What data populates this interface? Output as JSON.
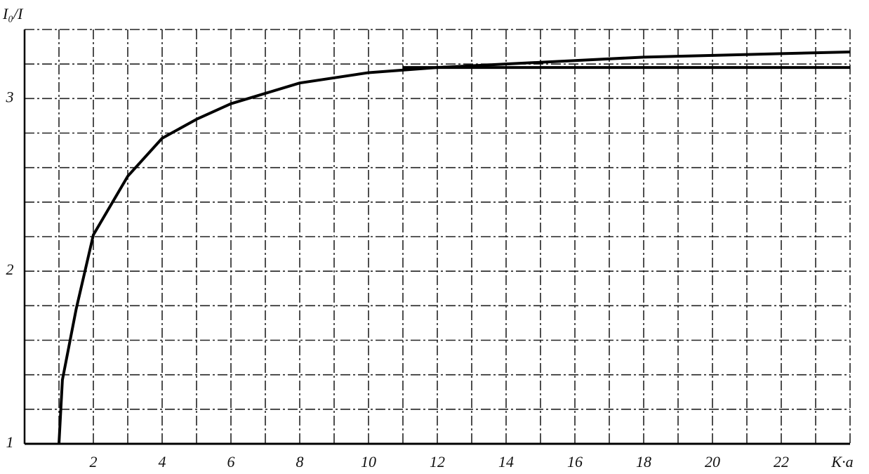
{
  "chart_data": {
    "type": "line",
    "ylabel": "I₀/I",
    "xlabel": "K·a",
    "xlim": [
      0,
      24
    ],
    "ylim": [
      1,
      3.4
    ],
    "xticks": [
      2,
      4,
      6,
      8,
      10,
      12,
      14,
      16,
      18,
      20,
      22
    ],
    "yticks": [
      1,
      2,
      3
    ],
    "xgrid": [
      1,
      2,
      3,
      4,
      5,
      6,
      7,
      8,
      9,
      10,
      11,
      12,
      13,
      14,
      15,
      16,
      17,
      18,
      19,
      20,
      21,
      22,
      23,
      24
    ],
    "ygrid": [
      1.2,
      1.4,
      1.6,
      1.8,
      2,
      2.2,
      2.4,
      2.6,
      2.8,
      3,
      3.2,
      3.4
    ],
    "grid": true,
    "series": [
      {
        "color": "#000000",
        "x": [
          1,
          1.1,
          1.5,
          2,
          3,
          4,
          5,
          6,
          7,
          8,
          10,
          12,
          14,
          16,
          18,
          20,
          22,
          24
        ],
        "values": [
          1,
          1.37,
          1.78,
          2.21,
          2.55,
          2.77,
          2.88,
          2.97,
          3.03,
          3.09,
          3.15,
          3.18,
          3.2,
          3.22,
          3.24,
          3.25,
          3.26,
          3.27
        ]
      },
      {
        "color": "#000000",
        "x": [
          11,
          24
        ],
        "values": [
          3.18,
          3.18
        ]
      }
    ]
  }
}
